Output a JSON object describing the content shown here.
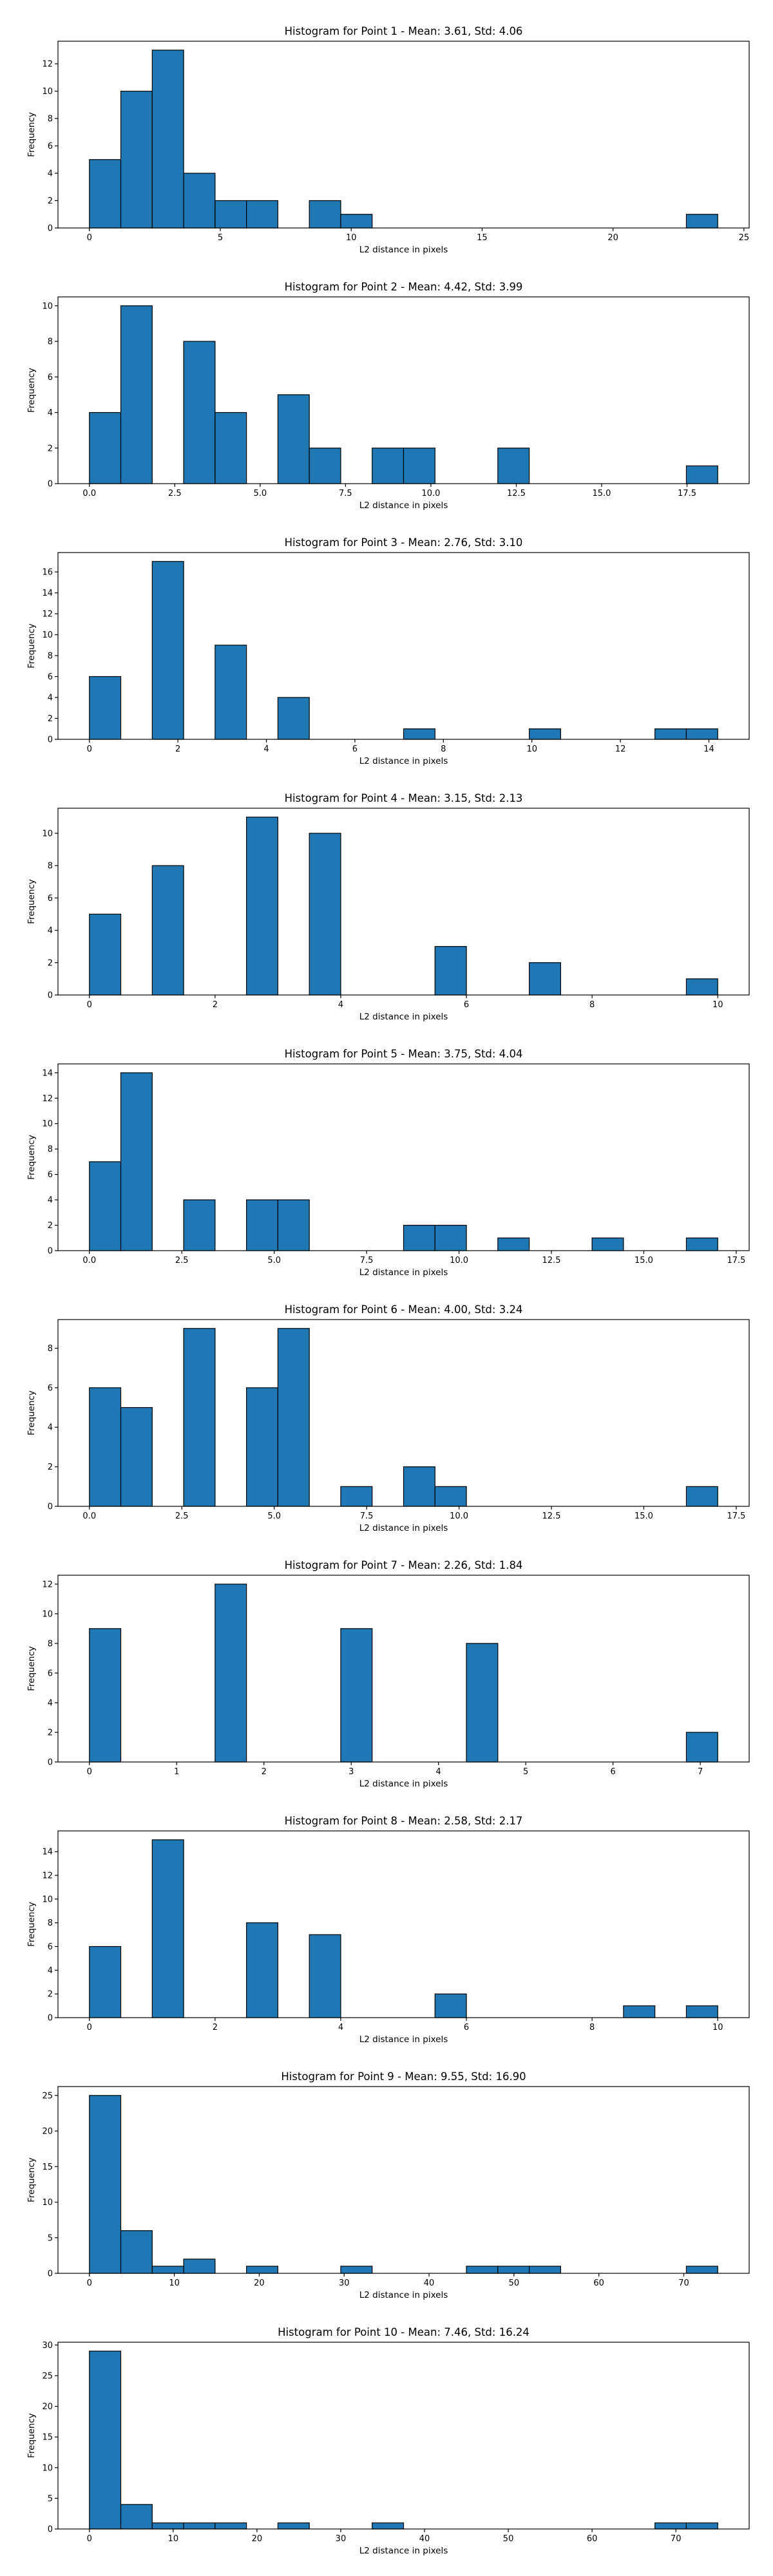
{
  "chart_data": [
    {
      "type": "bar",
      "title": "Histogram for Point 1 - Mean: 3.61, Std: 4.06",
      "xlabel": "L2 distance in pixels",
      "ylabel": "Frequency",
      "bin_edges": [
        0,
        1.2,
        2.4,
        3.6,
        4.8,
        6,
        7.2,
        8.4,
        9.6,
        10.8,
        12,
        13.2,
        14.4,
        15.6,
        16.8,
        18,
        19.2,
        20.4,
        21.6,
        22.8,
        24
      ],
      "values": [
        5,
        10,
        13,
        4,
        2,
        2,
        0,
        2,
        1,
        0,
        0,
        0,
        0,
        0,
        0,
        0,
        0,
        0,
        0,
        1
      ],
      "xlim": [
        -1.2,
        25.2
      ],
      "ylim": [
        0,
        13.65
      ],
      "xticks": [
        0,
        5,
        10,
        15,
        20,
        25
      ],
      "xtick_labels": [
        "0",
        "5",
        "10",
        "15",
        "20",
        "25"
      ],
      "yticks": [
        0,
        2,
        4,
        6,
        8,
        10,
        12
      ],
      "ytick_labels": [
        "0",
        "2",
        "4",
        "6",
        "8",
        "10",
        "12"
      ]
    },
    {
      "type": "bar",
      "title": "Histogram for Point 2 - Mean: 4.42, Std: 3.99",
      "xlabel": "L2 distance in pixels",
      "ylabel": "Frequency",
      "bin_edges": [
        0,
        0.92,
        1.84,
        2.76,
        3.68,
        4.6,
        5.52,
        6.44,
        7.36,
        8.28,
        9.2,
        10.12,
        11.04,
        11.96,
        12.88,
        13.8,
        14.72,
        15.64,
        16.56,
        17.48,
        18.4
      ],
      "values": [
        4,
        10,
        0,
        8,
        4,
        0,
        5,
        2,
        0,
        2,
        2,
        0,
        0,
        2,
        0,
        0,
        0,
        0,
        0,
        1
      ],
      "xlim": [
        -0.92,
        19.32
      ],
      "ylim": [
        0,
        10.5
      ],
      "xticks": [
        0,
        2.5,
        5,
        7.5,
        10,
        12.5,
        15,
        17.5
      ],
      "xtick_labels": [
        "0.0",
        "2.5",
        "5.0",
        "7.5",
        "10.0",
        "12.5",
        "15.0",
        "17.5"
      ],
      "yticks": [
        0,
        2,
        4,
        6,
        8,
        10
      ],
      "ytick_labels": [
        "0",
        "2",
        "4",
        "6",
        "8",
        "10"
      ]
    },
    {
      "type": "bar",
      "title": "Histogram for Point 3 - Mean: 2.76, Std: 3.10",
      "xlabel": "L2 distance in pixels",
      "ylabel": "Frequency",
      "bin_edges": [
        0,
        0.71,
        1.42,
        2.13,
        2.84,
        3.55,
        4.26,
        4.97,
        5.68,
        6.39,
        7.1,
        7.81,
        8.52,
        9.23,
        9.94,
        10.65,
        11.36,
        12.07,
        12.78,
        13.49,
        14.2
      ],
      "values": [
        6,
        0,
        17,
        0,
        9,
        0,
        4,
        0,
        0,
        0,
        1,
        0,
        0,
        0,
        1,
        0,
        0,
        0,
        1,
        1
      ],
      "xlim": [
        -0.71,
        14.91
      ],
      "ylim": [
        0,
        17.85
      ],
      "xticks": [
        0,
        2,
        4,
        6,
        8,
        10,
        12,
        14
      ],
      "xtick_labels": [
        "0",
        "2",
        "4",
        "6",
        "8",
        "10",
        "12",
        "14"
      ],
      "yticks": [
        0,
        2,
        4,
        6,
        8,
        10,
        12,
        14,
        16
      ],
      "ytick_labels": [
        "0",
        "2",
        "4",
        "6",
        "8",
        "10",
        "12",
        "14",
        "16"
      ]
    },
    {
      "type": "bar",
      "title": "Histogram for Point 4 - Mean: 3.15, Std: 2.13",
      "xlabel": "L2 distance in pixels",
      "ylabel": "Frequency",
      "bin_edges": [
        0,
        0.5,
        1,
        1.5,
        2,
        2.5,
        3,
        3.5,
        4,
        4.5,
        5,
        5.5,
        6,
        6.5,
        7,
        7.5,
        8,
        8.5,
        9,
        9.5,
        10
      ],
      "values": [
        5,
        0,
        8,
        0,
        0,
        11,
        0,
        10,
        0,
        0,
        0,
        3,
        0,
        0,
        2,
        0,
        0,
        0,
        0,
        1
      ],
      "xlim": [
        -0.5,
        10.5
      ],
      "ylim": [
        0,
        11.55
      ],
      "xticks": [
        0,
        2,
        4,
        6,
        8,
        10
      ],
      "xtick_labels": [
        "0",
        "2",
        "4",
        "6",
        "8",
        "10"
      ],
      "yticks": [
        0,
        2,
        4,
        6,
        8,
        10
      ],
      "ytick_labels": [
        "0",
        "2",
        "4",
        "6",
        "8",
        "10"
      ]
    },
    {
      "type": "bar",
      "title": "Histogram for Point 5 - Mean: 3.75, Std: 4.04",
      "xlabel": "L2 distance in pixels",
      "ylabel": "Frequency",
      "bin_edges": [
        0,
        0.85,
        1.7,
        2.55,
        3.4,
        4.25,
        5.1,
        5.95,
        6.8,
        7.65,
        8.5,
        9.35,
        10.2,
        11.05,
        11.9,
        12.75,
        13.6,
        14.45,
        15.3,
        16.15,
        17
      ],
      "values": [
        7,
        14,
        0,
        4,
        0,
        4,
        4,
        0,
        0,
        0,
        2,
        2,
        0,
        1,
        0,
        0,
        1,
        0,
        0,
        1
      ],
      "xlim": [
        -0.85,
        17.85
      ],
      "ylim": [
        0,
        14.7
      ],
      "xticks": [
        0,
        2.5,
        5,
        7.5,
        10,
        12.5,
        15,
        17.5
      ],
      "xtick_labels": [
        "0.0",
        "2.5",
        "5.0",
        "7.5",
        "10.0",
        "12.5",
        "15.0",
        "17.5"
      ],
      "yticks": [
        0,
        2,
        4,
        6,
        8,
        10,
        12,
        14
      ],
      "ytick_labels": [
        "0",
        "2",
        "4",
        "6",
        "8",
        "10",
        "12",
        "14"
      ]
    },
    {
      "type": "bar",
      "title": "Histogram for Point 6 - Mean: 4.00, Std: 3.24",
      "xlabel": "L2 distance in pixels",
      "ylabel": "Frequency",
      "bin_edges": [
        0,
        0.85,
        1.7,
        2.55,
        3.4,
        4.25,
        5.1,
        5.95,
        6.8,
        7.65,
        8.5,
        9.35,
        10.2,
        11.05,
        11.9,
        12.75,
        13.6,
        14.45,
        15.3,
        16.15,
        17
      ],
      "values": [
        6,
        5,
        0,
        9,
        0,
        6,
        9,
        0,
        1,
        0,
        2,
        1,
        0,
        0,
        0,
        0,
        0,
        0,
        0,
        1
      ],
      "xlim": [
        -0.85,
        17.85
      ],
      "ylim": [
        0,
        9.45
      ],
      "xticks": [
        0,
        2.5,
        5,
        7.5,
        10,
        12.5,
        15,
        17.5
      ],
      "xtick_labels": [
        "0.0",
        "2.5",
        "5.0",
        "7.5",
        "10.0",
        "12.5",
        "15.0",
        "17.5"
      ],
      "yticks": [
        0,
        2,
        4,
        6,
        8
      ],
      "ytick_labels": [
        "0",
        "2",
        "4",
        "6",
        "8"
      ]
    },
    {
      "type": "bar",
      "title": "Histogram for Point 7 - Mean: 2.26, Std: 1.84",
      "xlabel": "L2 distance in pixels",
      "ylabel": "Frequency",
      "bin_edges": [
        0,
        0.36,
        0.72,
        1.08,
        1.44,
        1.8,
        2.16,
        2.52,
        2.88,
        3.24,
        3.6,
        3.96,
        4.32,
        4.68,
        5.04,
        5.4,
        5.76,
        6.12,
        6.48,
        6.84,
        7.2
      ],
      "values": [
        9,
        0,
        0,
        0,
        12,
        0,
        0,
        0,
        9,
        0,
        0,
        0,
        8,
        0,
        0,
        0,
        0,
        0,
        0,
        2
      ],
      "xlim": [
        -0.36,
        7.56
      ],
      "ylim": [
        0,
        12.6
      ],
      "xticks": [
        0,
        1,
        2,
        3,
        4,
        5,
        6,
        7
      ],
      "xtick_labels": [
        "0",
        "1",
        "2",
        "3",
        "4",
        "5",
        "6",
        "7"
      ],
      "yticks": [
        0,
        2,
        4,
        6,
        8,
        10,
        12
      ],
      "ytick_labels": [
        "0",
        "2",
        "4",
        "6",
        "8",
        "10",
        "12"
      ]
    },
    {
      "type": "bar",
      "title": "Histogram for Point 8 - Mean: 2.58, Std: 2.17",
      "xlabel": "L2 distance in pixels",
      "ylabel": "Frequency",
      "bin_edges": [
        0,
        0.5,
        1,
        1.5,
        2,
        2.5,
        3,
        3.5,
        4,
        4.5,
        5,
        5.5,
        6,
        6.5,
        7,
        7.5,
        8,
        8.5,
        9,
        9.5,
        10
      ],
      "values": [
        6,
        0,
        15,
        0,
        0,
        8,
        0,
        7,
        0,
        0,
        0,
        2,
        0,
        0,
        0,
        0,
        0,
        1,
        0,
        1
      ],
      "xlim": [
        -0.5,
        10.5
      ],
      "ylim": [
        0,
        15.75
      ],
      "xticks": [
        0,
        2,
        4,
        6,
        8,
        10
      ],
      "xtick_labels": [
        "0",
        "2",
        "4",
        "6",
        "8",
        "10"
      ],
      "yticks": [
        0,
        2,
        4,
        6,
        8,
        10,
        12,
        14
      ],
      "ytick_labels": [
        "0",
        "2",
        "4",
        "6",
        "8",
        "10",
        "12",
        "14"
      ]
    },
    {
      "type": "bar",
      "title": "Histogram for Point 9 - Mean: 9.55, Std: 16.90",
      "xlabel": "L2 distance in pixels",
      "ylabel": "Frequency",
      "bin_edges": [
        0,
        3.7,
        7.4,
        11.1,
        14.8,
        18.5,
        22.2,
        25.9,
        29.6,
        33.3,
        37,
        40.7,
        44.4,
        48.1,
        51.8,
        55.5,
        59.2,
        62.9,
        66.6,
        70.3,
        74
      ],
      "values": [
        25,
        6,
        1,
        2,
        0,
        1,
        0,
        0,
        1,
        0,
        0,
        0,
        1,
        1,
        1,
        0,
        0,
        0,
        0,
        1
      ],
      "xlim": [
        -3.7,
        77.7
      ],
      "ylim": [
        0,
        26.25
      ],
      "xticks": [
        0,
        10,
        20,
        30,
        40,
        50,
        60,
        70
      ],
      "xtick_labels": [
        "0",
        "10",
        "20",
        "30",
        "40",
        "50",
        "60",
        "70"
      ],
      "yticks": [
        0,
        5,
        10,
        15,
        20,
        25
      ],
      "ytick_labels": [
        "0",
        "5",
        "10",
        "15",
        "20",
        "25"
      ]
    },
    {
      "type": "bar",
      "title": "Histogram for Point 10 - Mean: 7.46, Std: 16.24",
      "xlabel": "L2 distance in pixels",
      "ylabel": "Frequency",
      "bin_edges": [
        0,
        3.75,
        7.5,
        11.25,
        15,
        18.75,
        22.5,
        26.25,
        30,
        33.75,
        37.5,
        41.25,
        45,
        48.75,
        52.5,
        56.25,
        60,
        63.75,
        67.5,
        71.25,
        75
      ],
      "values": [
        29,
        4,
        1,
        1,
        1,
        0,
        1,
        0,
        0,
        1,
        0,
        0,
        0,
        0,
        0,
        0,
        0,
        0,
        1,
        1
      ],
      "xlim": [
        -3.75,
        78.75
      ],
      "ylim": [
        0,
        30.45
      ],
      "xticks": [
        0,
        10,
        20,
        30,
        40,
        50,
        60,
        70
      ],
      "xtick_labels": [
        "0",
        "10",
        "20",
        "30",
        "40",
        "50",
        "60",
        "70"
      ],
      "yticks": [
        0,
        5,
        10,
        15,
        20,
        25,
        30
      ],
      "ytick_labels": [
        "0",
        "5",
        "10",
        "15",
        "20",
        "25",
        "30"
      ]
    }
  ],
  "colors": {
    "bar_fill": "#1f77b4",
    "bar_edge": "#000000"
  }
}
